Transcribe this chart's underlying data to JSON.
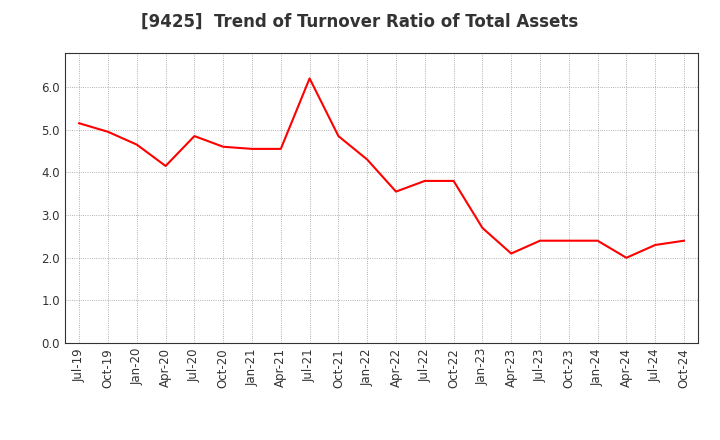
{
  "title": "[9425]  Trend of Turnover Ratio of Total Assets",
  "line_color": "#FF0000",
  "line_width": 1.5,
  "background_color": "#FFFFFF",
  "grid_color": "#999999",
  "ylim": [
    0.0,
    6.8
  ],
  "yticks": [
    0.0,
    1.0,
    2.0,
    3.0,
    4.0,
    5.0,
    6.0
  ],
  "x_labels": [
    "Jul-19",
    "Oct-19",
    "Jan-20",
    "Apr-20",
    "Jul-20",
    "Oct-20",
    "Jan-21",
    "Apr-21",
    "Jul-21",
    "Oct-21",
    "Jan-22",
    "Apr-22",
    "Jul-22",
    "Oct-22",
    "Jan-23",
    "Apr-23",
    "Jul-23",
    "Oct-23",
    "Jan-24",
    "Apr-24",
    "Jul-24",
    "Oct-24"
  ],
  "values": [
    5.15,
    4.95,
    4.65,
    4.15,
    4.85,
    4.6,
    4.55,
    4.55,
    6.2,
    4.85,
    4.3,
    3.55,
    3.8,
    3.8,
    2.7,
    2.1,
    2.4,
    2.4,
    2.4,
    2.0,
    2.3,
    2.4
  ],
  "title_fontsize": 12,
  "tick_fontsize": 8.5
}
